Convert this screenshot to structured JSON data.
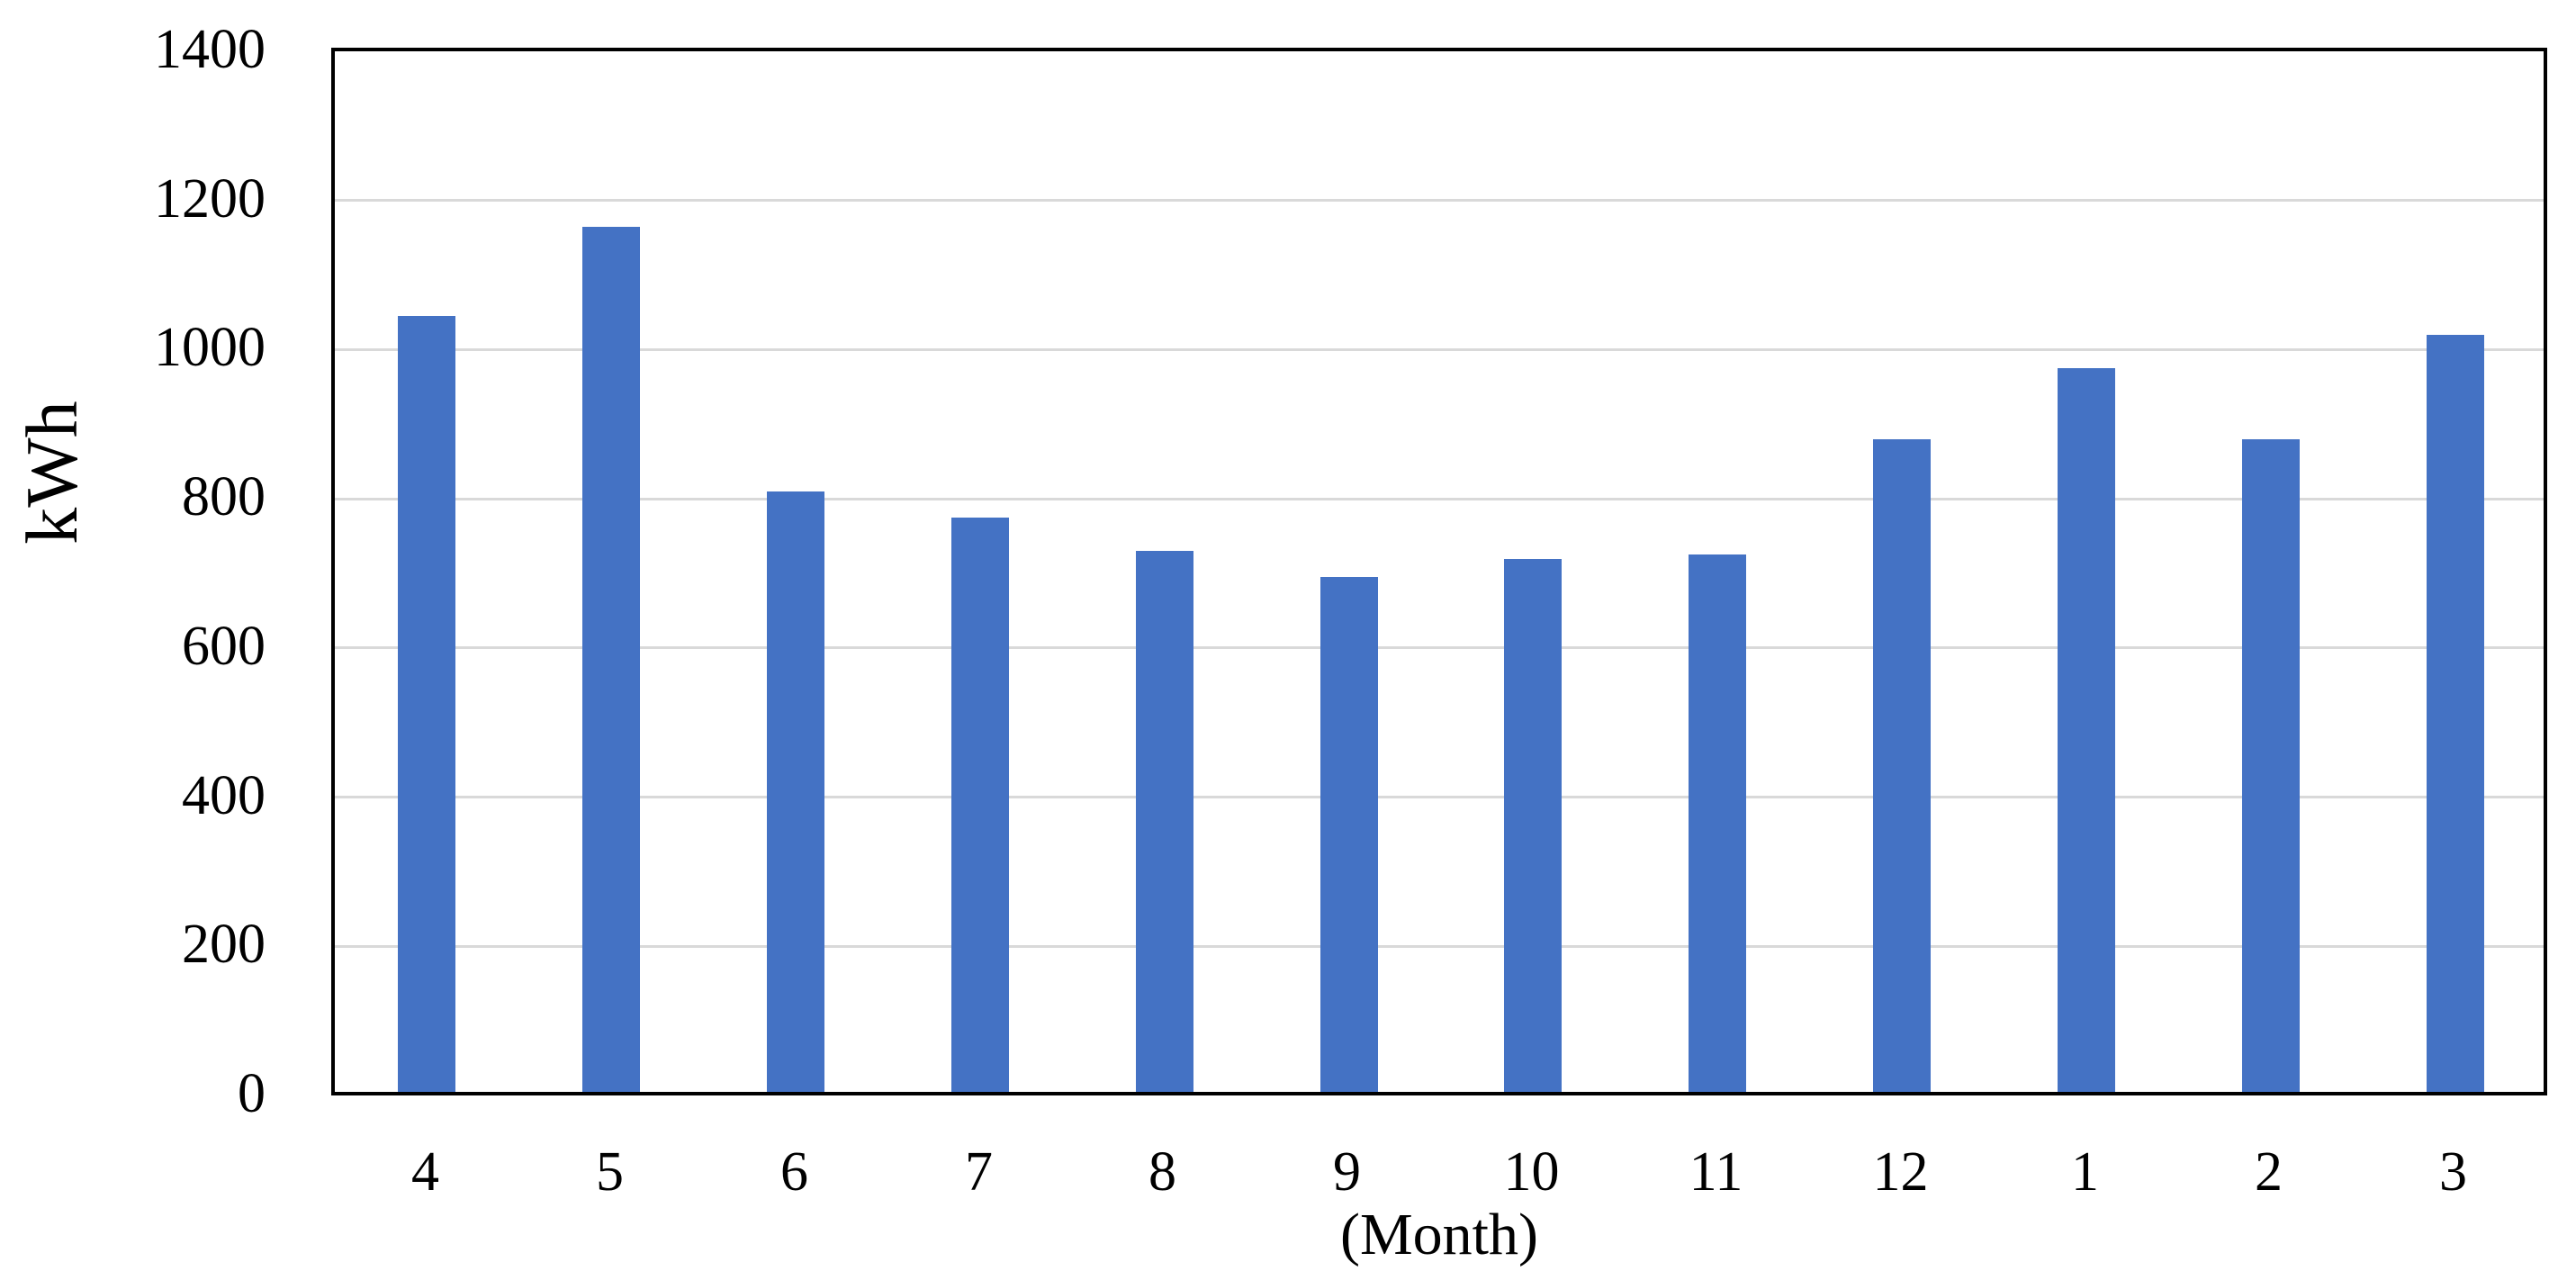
{
  "chart_data": {
    "type": "bar",
    "title": "",
    "categories": [
      "4",
      "5",
      "6",
      "7",
      "8",
      "9",
      "10",
      "11",
      "12",
      "1",
      "2",
      "3"
    ],
    "values": [
      1040,
      1160,
      805,
      770,
      725,
      690,
      715,
      720,
      875,
      970,
      875,
      1015
    ],
    "xlabel": "(Month)",
    "ylabel": "kWh",
    "ylim": [
      0,
      1400
    ],
    "yticks": [
      0,
      200,
      400,
      600,
      800,
      1000,
      1200,
      1400
    ],
    "grid": "horizontal-gridlines-on",
    "legend": "none",
    "bar_color": "#4472C4",
    "gridline_color": "#D9D9D9",
    "axis_frame_color": "#000000",
    "text_color": "#000000",
    "background_color": "#FFFFFF"
  }
}
